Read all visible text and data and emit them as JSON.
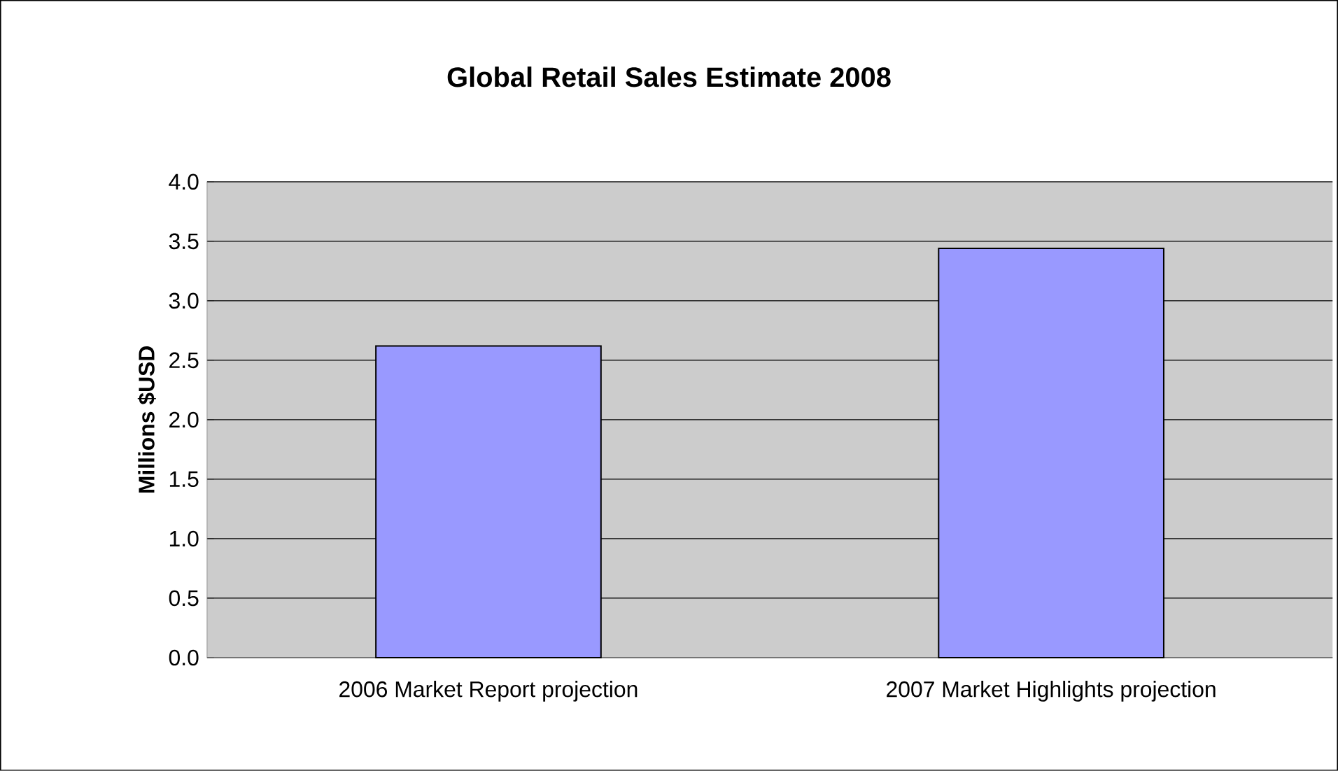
{
  "chart_data": {
    "type": "bar",
    "title": "Global Retail Sales Estimate 2008",
    "ylabel": "Millions $USD",
    "categories": [
      "2006 Market Report projection",
      "2007 Market Highlights projection"
    ],
    "values": [
      2.62,
      3.44
    ],
    "color": "#9999ff",
    "ylim": [
      0,
      4
    ],
    "yticks": [
      {
        "value": 0,
        "label": "0.0"
      },
      {
        "value": 0.5,
        "label": "0.5"
      },
      {
        "value": 1,
        "label": "1.0"
      },
      {
        "value": 1.5,
        "label": "1.5"
      },
      {
        "value": 2,
        "label": "2.0"
      },
      {
        "value": 2.5,
        "label": "2.5"
      },
      {
        "value": 3,
        "label": "3.0"
      },
      {
        "value": 3.5,
        "label": "3.5"
      },
      {
        "value": 4,
        "label": "4.0"
      }
    ],
    "grid": "y"
  }
}
